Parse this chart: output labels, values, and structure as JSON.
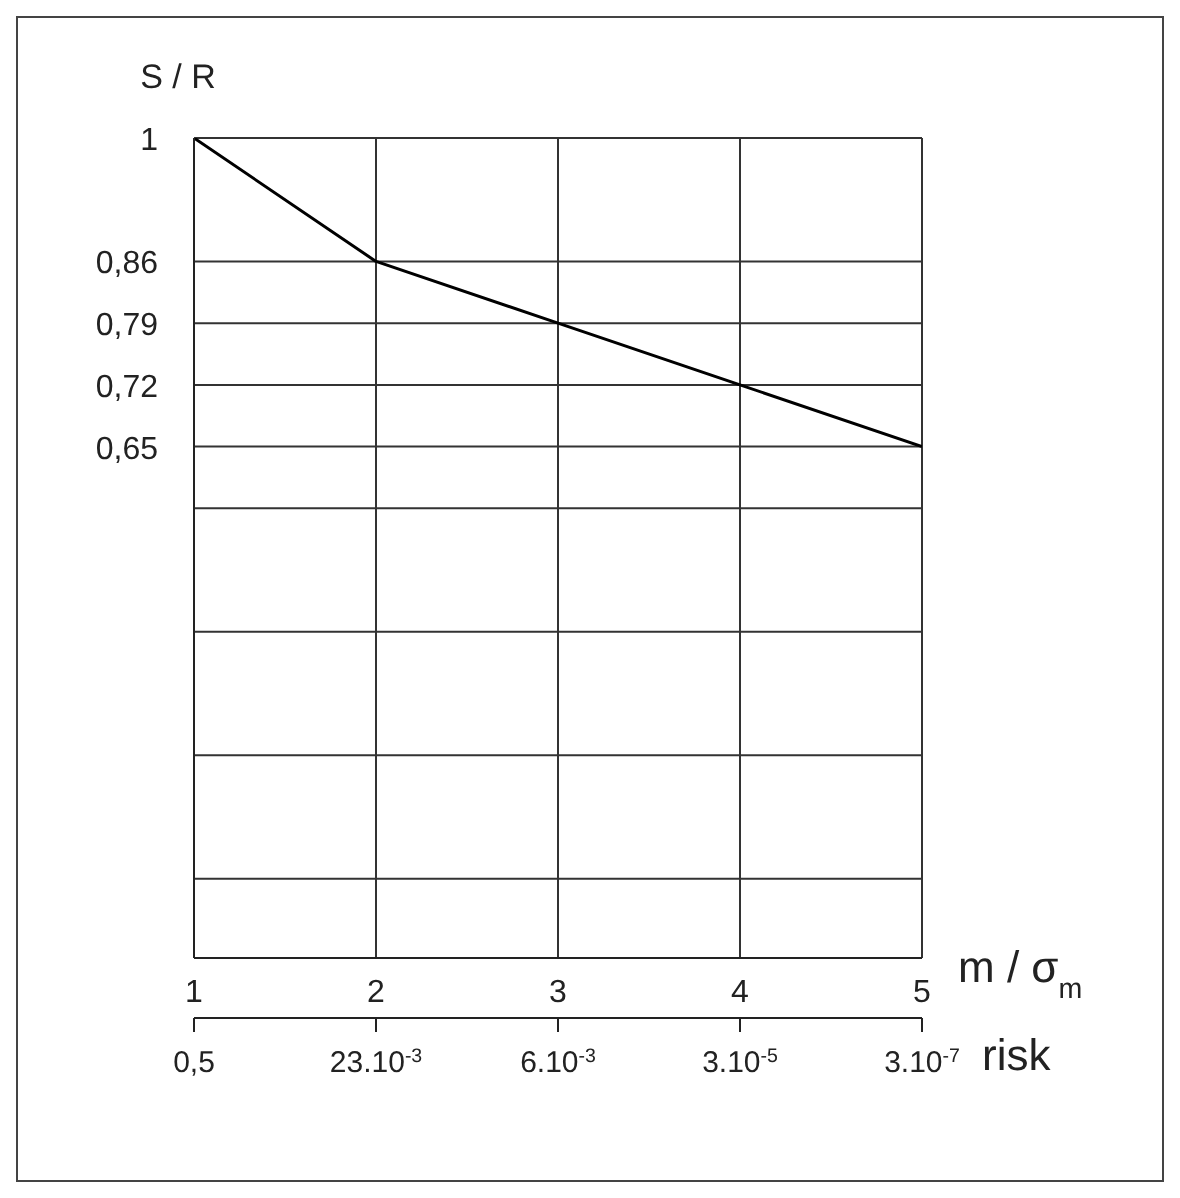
{
  "chart_data": {
    "type": "line",
    "xlabel": "m / σ$_{m}$",
    "ylabel": "S / R",
    "x2label": "risk",
    "x": [
      1,
      2,
      3,
      4,
      5
    ],
    "series": [
      {
        "color": "#000000",
        "values": [
          1,
          0.86,
          0.79,
          0.72,
          0.65
        ]
      }
    ],
    "xlim": [
      1,
      5
    ],
    "xticks": [
      1,
      2,
      3,
      4,
      5
    ],
    "annotations": [
      "0,5",
      "23.10$^{-3}$",
      "6.10$^{-3}$",
      "3.10$^{-5}$",
      "3.10$^{-7}$"
    ],
    "ylim": [
      0.07,
      1
    ],
    "yticks": [
      {
        "value": 0.16,
        "label": null
      },
      {
        "value": 0.3,
        "label": null
      },
      {
        "value": 0.44,
        "label": null
      },
      {
        "value": 0.58,
        "label": null
      },
      {
        "value": 0.65,
        "label": "0,65"
      },
      {
        "value": 0.72,
        "label": "0,72"
      },
      {
        "value": 0.79,
        "label": "0,79"
      },
      {
        "value": 0.86,
        "label": "0,86"
      },
      1
    ],
    "grid": true,
    "marker": "none",
    "line_style": "solid"
  }
}
